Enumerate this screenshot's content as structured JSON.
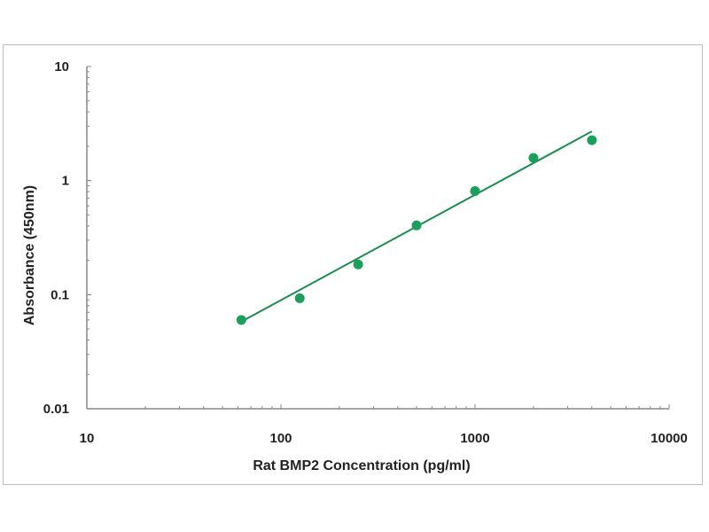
{
  "chart_data": {
    "type": "scatter",
    "title": "",
    "xlabel": "Rat BMP2  Concentration (pg/ml)",
    "ylabel": "Absorbance (450nm)",
    "x_scale": "log",
    "y_scale": "log",
    "xlim": [
      10,
      10000
    ],
    "ylim": [
      0.01,
      10
    ],
    "x_ticks": [
      "10",
      "100",
      "1000",
      "10000"
    ],
    "y_ticks": [
      "0.01",
      "0.1",
      "1",
      "10"
    ],
    "grid": false,
    "series": [
      {
        "type": "scatter",
        "x": [
          62.5,
          125,
          250,
          500,
          1000,
          2000,
          4000
        ],
        "y": [
          0.06,
          0.093,
          0.184,
          0.405,
          0.81,
          1.58,
          2.26
        ],
        "color": "#1aa05a"
      },
      {
        "type": "line",
        "x": [
          62.5,
          4000
        ],
        "y": [
          0.058,
          2.7
        ],
        "color": "#1e8c50"
      }
    ]
  }
}
